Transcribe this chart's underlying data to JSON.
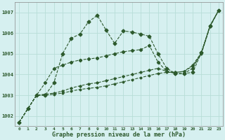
{
  "title": "Graphe pression niveau de la mer (hPa)",
  "xlabel_hours": [
    0,
    1,
    2,
    3,
    4,
    5,
    6,
    7,
    8,
    9,
    10,
    11,
    12,
    13,
    14,
    15,
    16,
    17,
    18,
    19,
    20,
    21,
    22,
    23
  ],
  "ylim": [
    1001.5,
    1007.5
  ],
  "yticks": [
    1002,
    1003,
    1004,
    1005,
    1006,
    1007
  ],
  "background_color": "#d6f0f0",
  "grid_color": "#b8ddd8",
  "line_color": "#2d5a2d",
  "line1": [
    1001.7,
    1002.35,
    1003.0,
    1003.0,
    1003.6,
    1005.0,
    1005.75,
    1005.95,
    1006.55,
    1006.85,
    1006.15,
    1005.5,
    1006.1,
    1006.05,
    1005.95,
    1005.85,
    1005.0,
    1004.3,
    1004.05,
    1004.05,
    1004.1,
    1005.05,
    1006.35,
    1007.1
  ],
  "line2": [
    1001.7,
    1002.35,
    1003.0,
    1003.6,
    1004.3,
    1004.45,
    1004.6,
    1004.7,
    1004.75,
    1004.8,
    1004.9,
    1005.0,
    1005.1,
    1005.15,
    1005.2,
    1005.4,
    1004.6,
    1004.15,
    1004.05,
    1004.05,
    1004.3,
    1005.05,
    1006.35,
    1007.1
  ],
  "line3": [
    1001.7,
    1002.35,
    1003.0,
    1003.05,
    1003.1,
    1003.2,
    1003.35,
    1003.45,
    1003.55,
    1003.6,
    1003.7,
    1003.8,
    1003.9,
    1004.0,
    1004.1,
    1004.2,
    1004.3,
    1004.15,
    1004.1,
    1004.15,
    1004.45,
    1005.05,
    1006.35,
    1007.1
  ],
  "line4": [
    1001.7,
    1002.35,
    1003.0,
    1003.0,
    1003.05,
    1003.1,
    1003.2,
    1003.28,
    1003.33,
    1003.38,
    1003.45,
    1003.55,
    1003.65,
    1003.75,
    1003.85,
    1003.95,
    1004.05,
    1004.1,
    1004.1,
    1004.15,
    1004.4,
    1005.0,
    1006.3,
    1007.1
  ]
}
